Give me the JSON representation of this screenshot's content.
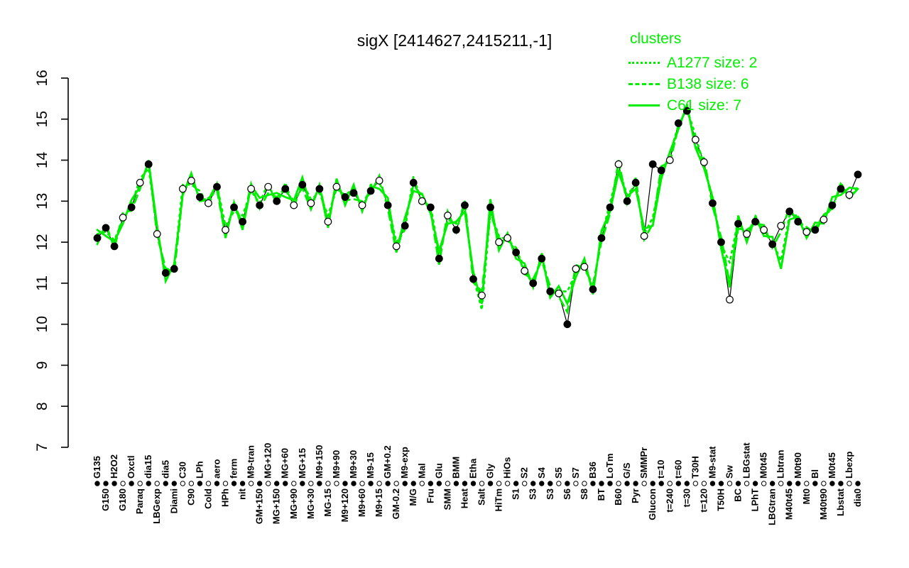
{
  "colors": {
    "cluster_green": "#00ee00",
    "series_black": "#000000",
    "background": "#ffffff"
  },
  "chart_data": {
    "type": "line",
    "title": "sigX [2414627,2415211,-1]",
    "xlabel": "",
    "ylabel": "",
    "ylim": [
      7,
      16
    ],
    "yticks": [
      7,
      8,
      9,
      10,
      11,
      12,
      13,
      14,
      15,
      16
    ],
    "grid": false,
    "legend_position": "top-right",
    "legend": {
      "title": "clusters",
      "entries": [
        {
          "label": "A1277 size: 2",
          "style": "dotted"
        },
        {
          "label": "B138 size: 6",
          "style": "dashed"
        },
        {
          "label": "C61 size: 7",
          "style": "solid"
        }
      ]
    },
    "x_axis_style": "category labels rotated 90deg, staggered in two rows with a rug of filled/open circles between rows",
    "categories": [
      "G135",
      "G150",
      "H2O2",
      "G180",
      "Oxctl",
      "Paraq",
      "dia15",
      "LBGexp",
      "dia5",
      "Diami",
      "C30",
      "C90",
      "LPh",
      "Cold",
      "aero",
      "HPh",
      "ferm",
      "nit",
      "M9-tran",
      "GM+150",
      "MG+120",
      "MG+150",
      "MG+60",
      "MG+90",
      "MG+15",
      "MG+30",
      "M9+150",
      "MG-15",
      "M9+90",
      "M9+120",
      "M9+30",
      "M9+60",
      "M9-15",
      "M9+15",
      "GM+0.2",
      "GM-0.2",
      "M9-exp",
      "M/G",
      "Mal",
      "Fru",
      "Glu",
      "SMM",
      "BMM",
      "Heat",
      "Etha",
      "Salt",
      "Gly",
      "HiTm",
      "HiOs",
      "S1",
      "S2",
      "S3",
      "S4",
      "S3",
      "S5",
      "S6",
      "S7",
      "S8",
      "B36",
      "BT",
      "LoTm",
      "B60",
      "G/S",
      "Pyr",
      "SMMPr",
      "Glucon",
      "t=10",
      "t=240",
      "t=60",
      "t=30",
      "T30H",
      "t=120",
      "M9-stat",
      "T50H",
      "Sw",
      "BC",
      "LBGstat",
      "LPhT",
      "M0t45",
      "LBGtran",
      "Lbtran",
      "M40t45",
      "M0t90",
      "Mt0",
      "Bl",
      "M40t90",
      "M0t45",
      "Lbstat",
      "Lbexp",
      "dia0"
    ],
    "series": [
      {
        "name": "sigX profile",
        "kind": "points-line",
        "color": "#000000",
        "values": [
          12.1,
          12.35,
          11.9,
          12.6,
          12.85,
          13.45,
          13.9,
          12.2,
          11.25,
          11.35,
          13.3,
          13.5,
          13.1,
          12.95,
          13.35,
          12.3,
          12.85,
          12.5,
          13.3,
          12.9,
          13.35,
          13.0,
          13.3,
          12.9,
          13.4,
          12.95,
          13.3,
          12.5,
          13.35,
          13.1,
          13.2,
          12.9,
          13.25,
          13.5,
          12.9,
          11.9,
          12.4,
          13.45,
          13.0,
          12.85,
          11.6,
          12.65,
          12.3,
          12.9,
          11.1,
          10.7,
          12.85,
          12.0,
          12.1,
          11.75,
          11.3,
          11.0,
          11.6,
          10.8,
          10.75,
          10.0,
          11.35,
          11.4,
          10.85,
          12.1,
          12.85,
          13.9,
          13.0,
          13.45,
          12.15,
          13.9,
          13.75,
          14.0,
          14.9,
          15.2,
          14.5,
          13.95,
          12.95,
          12.0,
          10.6,
          12.45,
          12.2,
          12.5,
          12.3,
          11.95,
          12.4,
          12.75,
          12.5,
          12.25,
          12.3,
          12.55,
          12.9,
          13.3,
          13.15,
          13.65
        ],
        "filled": [
          1,
          1,
          1,
          0,
          1,
          0,
          1,
          0,
          1,
          1,
          0,
          0,
          1,
          0,
          1,
          0,
          1,
          1,
          0,
          1,
          0,
          1,
          1,
          0,
          1,
          0,
          1,
          0,
          0,
          1,
          1,
          0,
          1,
          0,
          1,
          0,
          1,
          1,
          0,
          1,
          1,
          0,
          1,
          1,
          1,
          0,
          1,
          0,
          0,
          1,
          0,
          1,
          1,
          1,
          0,
          1,
          0,
          0,
          1,
          1,
          1,
          0,
          1,
          1,
          0,
          1,
          1,
          0,
          1,
          1,
          0,
          0,
          1,
          1,
          0,
          1,
          0,
          1,
          0,
          1,
          0,
          1,
          1,
          0,
          1,
          0,
          1,
          1,
          0,
          1
        ]
      },
      {
        "name": "A1277",
        "cluster_size": 2,
        "line_style": "dotted",
        "color": "#00ee00",
        "values": [
          12.2,
          12.25,
          12.05,
          12.55,
          12.9,
          13.55,
          13.8,
          12.35,
          11.2,
          11.4,
          13.4,
          13.4,
          13.25,
          12.9,
          13.4,
          12.4,
          12.75,
          12.65,
          13.25,
          12.95,
          13.45,
          12.9,
          13.45,
          12.85,
          13.45,
          13.05,
          13.2,
          12.65,
          13.3,
          13.15,
          13.3,
          12.8,
          13.4,
          13.45,
          12.95,
          12.0,
          12.3,
          13.6,
          12.95,
          12.9,
          11.7,
          12.55,
          12.45,
          12.85,
          11.15,
          10.35,
          12.75,
          12.15,
          12.05,
          11.8,
          11.4,
          10.9,
          11.75,
          10.75,
          10.8,
          10.8,
          11.25,
          11.55,
          10.8,
          12.15,
          12.95,
          13.8,
          13.15,
          13.4,
          12.2,
          12.6,
          13.65,
          14.15,
          14.85,
          15.25,
          14.6,
          13.85,
          13.1,
          11.95,
          11.5,
          12.55,
          12.1,
          12.65,
          12.25,
          12.0,
          11.55,
          12.65,
          12.65,
          12.2,
          12.35,
          12.65,
          12.8,
          13.45,
          13.1,
          13.35
        ]
      },
      {
        "name": "B138",
        "cluster_size": 6,
        "line_style": "dashed",
        "color": "#00ee00",
        "values": [
          11.95,
          12.45,
          11.85,
          12.72,
          12.77,
          13.3,
          14.0,
          12.15,
          11.37,
          11.27,
          13.15,
          13.6,
          13.05,
          13.07,
          13.27,
          12.15,
          12.95,
          12.45,
          13.42,
          12.82,
          13.2,
          13.1,
          13.25,
          13.02,
          13.32,
          12.8,
          13.4,
          12.45,
          13.47,
          13.02,
          13.05,
          13.0,
          13.2,
          13.62,
          12.82,
          11.75,
          12.5,
          13.4,
          13.12,
          12.77,
          11.45,
          12.75,
          12.25,
          13.02,
          11.02,
          10.8,
          12.7,
          12.1,
          12.05,
          11.87,
          11.22,
          11.1,
          11.55,
          10.92,
          10.67,
          10.3,
          11.45,
          11.35,
          10.97,
          12.02,
          12.7,
          14.0,
          12.95,
          13.57,
          12.07,
          12.45,
          13.85,
          13.95,
          14.8,
          15.32,
          14.35,
          14.05,
          12.87,
          12.12,
          11.0,
          12.33,
          12.3,
          12.45,
          12.42,
          11.87,
          12.25,
          12.85,
          12.45,
          12.37,
          12.22,
          12.67,
          12.82,
          13.42,
          13.07,
          13.3
        ]
      },
      {
        "name": "C61",
        "cluster_size": 7,
        "line_style": "solid",
        "color": "#00ee00",
        "values": [
          12.3,
          12.15,
          12.02,
          12.45,
          13.03,
          13.35,
          13.98,
          12.4,
          11.05,
          11.47,
          13.15,
          13.68,
          13.0,
          13.03,
          13.43,
          12.1,
          12.97,
          12.3,
          13.38,
          13.08,
          13.15,
          13.2,
          13.1,
          13.02,
          13.58,
          12.85,
          13.38,
          12.35,
          13.55,
          12.9,
          13.4,
          12.75,
          13.37,
          13.3,
          13.08,
          11.8,
          12.6,
          13.25,
          13.18,
          12.7,
          11.8,
          12.45,
          12.5,
          12.75,
          11.28,
          10.5,
          13.05,
          11.8,
          12.22,
          11.6,
          11.48,
          10.9,
          11.72,
          10.65,
          10.93,
          10.5,
          11.15,
          11.6,
          10.73,
          12.28,
          12.75,
          13.7,
          13.12,
          13.3,
          12.33,
          12.4,
          13.55,
          14.2,
          14.75,
          15.35,
          14.3,
          13.8,
          13.1,
          11.85,
          10.9,
          12.65,
          12.0,
          12.62,
          12.15,
          12.13,
          11.35,
          12.55,
          12.62,
          12.1,
          12.48,
          12.45,
          13.1,
          13.15,
          13.33,
          13.3
        ]
      }
    ]
  }
}
